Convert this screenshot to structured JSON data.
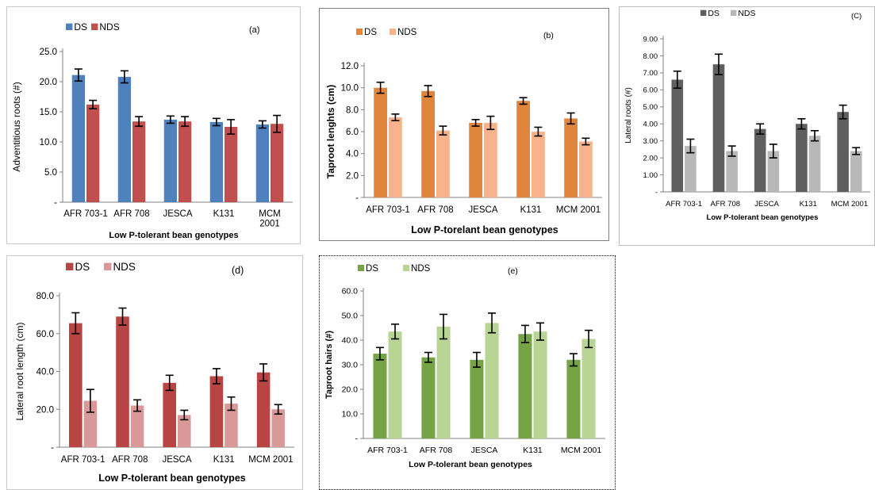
{
  "chart_data": [
    {
      "id": "a",
      "type": "bar",
      "tag": "(a)",
      "categories": [
        "AFR 703-1",
        "AFR 708",
        "JESCA",
        "K131",
        "MCM|2001"
      ],
      "series": [
        {
          "name": "DS",
          "color": "#4f81bd",
          "values": [
            21.1,
            20.8,
            13.7,
            13.3,
            12.9
          ],
          "errors": [
            1.0,
            1.0,
            0.6,
            0.6,
            0.6
          ]
        },
        {
          "name": "NDS",
          "color": "#c0504d",
          "values": [
            16.2,
            13.4,
            13.4,
            12.5,
            13.0
          ],
          "errors": [
            0.7,
            0.8,
            0.8,
            1.2,
            1.4
          ]
        }
      ],
      "ylim": [
        0,
        25
      ],
      "yticks": [
        0,
        5,
        10,
        15,
        20,
        25
      ],
      "ytick_labels": [
        "-",
        "5.0",
        "10.0",
        "15.0",
        "20.0",
        "25.0"
      ],
      "ylabel": "Adventitious roots (#)",
      "xlabel": "Low P-tolerant bean genotypes"
    },
    {
      "id": "b",
      "type": "bar",
      "tag": "(b)",
      "categories": [
        "AFR 703-1",
        "AFR 708",
        "JESCA",
        "K131",
        "MCM 2001"
      ],
      "series": [
        {
          "name": "DS",
          "color": "#e0863c",
          "values": [
            10.0,
            9.7,
            6.8,
            8.8,
            7.2
          ],
          "errors": [
            0.5,
            0.5,
            0.3,
            0.3,
            0.5
          ]
        },
        {
          "name": "NDS",
          "color": "#f9b38a",
          "values": [
            7.3,
            6.1,
            6.8,
            6.0,
            5.1
          ],
          "errors": [
            0.3,
            0.4,
            0.6,
            0.4,
            0.3
          ]
        }
      ],
      "ylim": [
        0,
        12
      ],
      "yticks": [
        0,
        2,
        4,
        6,
        8,
        10,
        12
      ],
      "ytick_labels": [
        "-",
        "2.0",
        "4.0",
        "6.0",
        "8.0",
        "10.0",
        "12.0"
      ],
      "ylabel": "Taproot lenghts (cm)",
      "xlabel": "Low P-torelant bean genotypes"
    },
    {
      "id": "c",
      "type": "bar",
      "tag": "(C)",
      "categories": [
        "AFR 703-1",
        "AFR 708",
        "JESCA",
        "K131",
        "MCM 2001"
      ],
      "series": [
        {
          "name": "DS",
          "color": "#5f5f5f",
          "values": [
            6.6,
            7.5,
            3.7,
            4.0,
            4.7
          ],
          "errors": [
            0.5,
            0.6,
            0.3,
            0.3,
            0.4
          ]
        },
        {
          "name": "NDS",
          "color": "#b8b8b8",
          "values": [
            2.7,
            2.4,
            2.4,
            3.3,
            2.4
          ],
          "errors": [
            0.4,
            0.3,
            0.4,
            0.3,
            0.2
          ]
        }
      ],
      "ylim": [
        0,
        9
      ],
      "yticks": [
        0,
        1,
        2,
        3,
        4,
        5,
        6,
        7,
        8,
        9
      ],
      "ytick_labels": [
        "-",
        "1.00",
        "2.00",
        "3.00",
        "4.00",
        "5.00",
        "6.00",
        "7.00",
        "8.00",
        "9.00"
      ],
      "ylabel": "Lateral roots (#)",
      "xlabel": "Low P-tolerant bean genotypes"
    },
    {
      "id": "d",
      "type": "bar",
      "tag": "(d)",
      "categories": [
        "AFR 703-1",
        "AFR 708",
        "JESCA",
        "K131",
        "MCM 2001"
      ],
      "series": [
        {
          "name": "DS",
          "color": "#b84443",
          "values": [
            65.5,
            69.0,
            34.0,
            37.5,
            39.5
          ],
          "errors": [
            5.5,
            4.5,
            4.0,
            4.0,
            4.5
          ]
        },
        {
          "name": "NDS",
          "color": "#da9999",
          "values": [
            24.5,
            22.0,
            17.0,
            23.0,
            20.0
          ],
          "errors": [
            6.0,
            3.0,
            2.5,
            3.5,
            2.5
          ]
        }
      ],
      "ylim": [
        0,
        80
      ],
      "yticks": [
        0,
        20,
        40,
        60,
        80
      ],
      "ytick_labels": [
        "-",
        "20.0",
        "40.0",
        "60.0",
        "80.0"
      ],
      "ylabel": "Lateral root length (cm)",
      "xlabel": "Low P-tolerant bean genotypes"
    },
    {
      "id": "e",
      "type": "bar",
      "tag": "(e)",
      "categories": [
        "AFR 703-1",
        "AFR 708",
        "JESCA",
        "K131",
        "MCM 2001"
      ],
      "series": [
        {
          "name": "DS",
          "color": "#77a347",
          "values": [
            34.5,
            33.0,
            32.0,
            42.5,
            32.0
          ],
          "errors": [
            2.5,
            2.0,
            3.0,
            3.5,
            2.5
          ]
        },
        {
          "name": "NDS",
          "color": "#b9d595",
          "values": [
            43.5,
            45.5,
            47.0,
            43.5,
            40.5
          ],
          "errors": [
            3.0,
            5.0,
            4.0,
            3.5,
            3.5
          ]
        }
      ],
      "ylim": [
        0,
        60
      ],
      "yticks": [
        0,
        10,
        20,
        30,
        40,
        50,
        60
      ],
      "ytick_labels": [
        "-",
        "10.0",
        "20.0",
        "30.0",
        "40.0",
        "50.0",
        "60.0"
      ],
      "ylabel": "Taproot hairs (#)",
      "xlabel": "Low P-tolerant bean genotypes"
    }
  ]
}
